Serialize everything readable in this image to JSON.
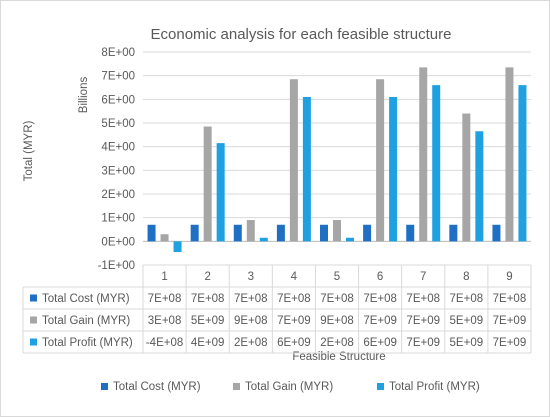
{
  "chart_data": {
    "type": "bar",
    "title": "Economic analysis for each feasible structure",
    "xlabel": "Feasible Structure",
    "ylabel": "Total (MYR)",
    "y_units_label": "Billions",
    "ylim": [
      -1,
      8
    ],
    "y_ticks": [
      -1,
      0,
      1,
      2,
      3,
      4,
      5,
      6,
      7,
      8
    ],
    "y_tick_labels": [
      "-1E+00",
      "0E+00",
      "1E+00",
      "2E+00",
      "3E+00",
      "4E+00",
      "5E+00",
      "6E+00",
      "7E+00",
      "8E+00"
    ],
    "categories": [
      "1",
      "2",
      "3",
      "4",
      "5",
      "6",
      "7",
      "8",
      "9"
    ],
    "grid": true,
    "legend_position": "bottom",
    "colors": [
      "#1f6fc5",
      "#a6a6a6",
      "#1fa0e0"
    ],
    "series": [
      {
        "name": "Total Cost (MYR)",
        "values": [
          0.7,
          0.7,
          0.7,
          0.7,
          0.7,
          0.7,
          0.7,
          0.7,
          0.7
        ],
        "table_labels": [
          "7E+08",
          "7E+08",
          "7E+08",
          "7E+08",
          "7E+08",
          "7E+08",
          "7E+08",
          "7E+08",
          "7E+08"
        ]
      },
      {
        "name": "Total Gain (MYR)",
        "values": [
          0.3,
          4.85,
          0.9,
          6.85,
          0.9,
          6.85,
          7.35,
          5.4,
          7.35
        ],
        "table_labels": [
          "3E+08",
          "5E+09",
          "9E+08",
          "7E+09",
          "9E+08",
          "7E+09",
          "7E+09",
          "5E+09",
          "7E+09"
        ]
      },
      {
        "name": "Total Profit (MYR)",
        "values": [
          -0.45,
          4.15,
          0.15,
          6.1,
          0.15,
          6.1,
          6.6,
          4.65,
          6.6
        ],
        "table_labels": [
          "-4E+08",
          "4E+09",
          "2E+08",
          "6E+09",
          "2E+08",
          "6E+09",
          "7E+09",
          "5E+09",
          "7E+09"
        ]
      }
    ]
  }
}
